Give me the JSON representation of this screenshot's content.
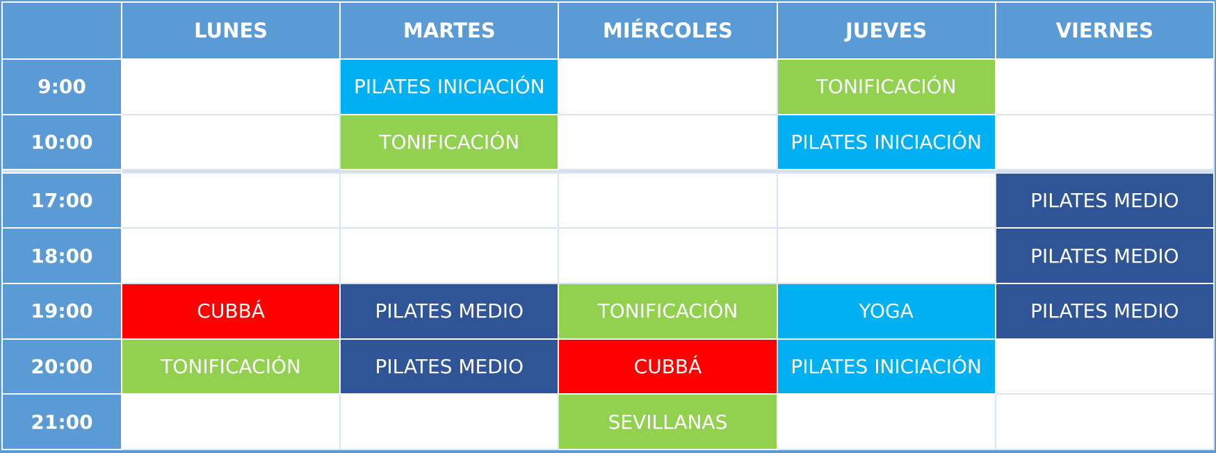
{
  "table": {
    "header": [
      null,
      "LUNES",
      "MARTES",
      "MIÉRCOLES",
      "JUEVES",
      "VIERNES"
    ],
    "rows": [
      {
        "time": "9:00",
        "cells": [
          null,
          {
            "text": "PILATES INICIACIÓN",
            "color": "#00b0f0"
          },
          null,
          {
            "text": "TONIFICACIÓN",
            "color": "#92d050"
          },
          null
        ]
      },
      {
        "time": "10:00",
        "cells": [
          null,
          {
            "text": "TONIFICACIÓN",
            "color": "#92d050"
          },
          null,
          {
            "text": "PILATES INICIACIÓN",
            "color": "#00b0f0"
          },
          null
        ]
      },
      {
        "time": null,
        "cells": [
          null,
          null,
          null,
          null,
          null
        ],
        "color": "#d3ddf0"
      },
      {
        "time": "17:00",
        "cells": [
          null,
          null,
          null,
          null,
          {
            "text": "PILATES MEDIO",
            "color": "#2f5597"
          }
        ]
      },
      {
        "time": "18:00",
        "cells": [
          null,
          null,
          null,
          null,
          {
            "text": "PILATES MEDIO",
            "color": "#2f5597"
          }
        ]
      },
      {
        "time": "19:00",
        "cells": [
          {
            "text": "CUBBÁ",
            "color": "#ff0000"
          },
          {
            "text": "PILATES MEDIO",
            "color": "#2f5597"
          },
          {
            "text": "TONIFICACIÓN",
            "color": "#92d050"
          },
          {
            "text": "YOGA",
            "color": "#00b0f0"
          },
          {
            "text": "PILATES MEDIO",
            "color": "#2f5597"
          }
        ]
      },
      {
        "time": "20:00",
        "cells": [
          {
            "text": "TONIFICACIÓN",
            "color": "#92d050"
          },
          {
            "text": "PILATES MEDIO",
            "color": "#2f5597"
          },
          {
            "text": "CUBBÁ",
            "color": "#ff0000"
          },
          {
            "text": "PILATES INICIACIÓN",
            "color": "#00b0f0"
          },
          null
        ]
      },
      {
        "time": "21:00",
        "cells": [
          null,
          null,
          {
            "text": "SEVILLANAS",
            "color": "#92d050"
          },
          null,
          null
        ]
      }
    ]
  }
}
